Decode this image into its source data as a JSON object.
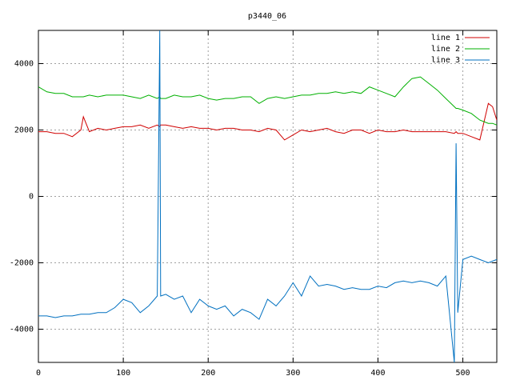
{
  "chart_data": {
    "type": "line",
    "title": "p3440_06",
    "x": [
      0,
      10,
      20,
      30,
      40,
      50,
      53,
      60,
      70,
      80,
      90,
      100,
      110,
      120,
      130,
      140,
      143,
      144,
      150,
      160,
      170,
      180,
      190,
      200,
      210,
      220,
      230,
      240,
      250,
      260,
      270,
      280,
      290,
      300,
      310,
      320,
      330,
      340,
      350,
      360,
      370,
      380,
      390,
      400,
      410,
      420,
      430,
      440,
      450,
      460,
      470,
      480,
      490,
      492,
      494,
      500,
      510,
      520,
      530,
      535,
      540
    ],
    "series": [
      {
        "name": "line 1",
        "color": "#d00000",
        "values": [
          1950,
          1950,
          1900,
          1900,
          1800,
          2000,
          2400,
          1950,
          2050,
          2000,
          2050,
          2100,
          2100,
          2150,
          2050,
          2150,
          2100,
          2150,
          2150,
          2100,
          2050,
          2100,
          2050,
          2050,
          2000,
          2050,
          2050,
          2000,
          2000,
          1950,
          2050,
          2000,
          1700,
          1850,
          2000,
          1950,
          2000,
          2050,
          1950,
          1900,
          2000,
          2000,
          1900,
          2000,
          1950,
          1950,
          2000,
          1950,
          1950,
          1950,
          1950,
          1950,
          1900,
          1950,
          1900,
          1900,
          1800,
          1700,
          2800,
          2700,
          2300
        ]
      },
      {
        "name": "line 2",
        "color": "#00b000",
        "values": [
          3300,
          3150,
          3100,
          3100,
          3000,
          3000,
          3000,
          3050,
          3000,
          3050,
          3050,
          3050,
          3000,
          2950,
          3050,
          2950,
          3000,
          2950,
          2950,
          3050,
          3000,
          3000,
          3050,
          2950,
          2900,
          2950,
          2950,
          3000,
          3000,
          2800,
          2950,
          3000,
          2950,
          3000,
          3050,
          3050,
          3100,
          3100,
          3150,
          3100,
          3150,
          3100,
          3300,
          3200,
          3100,
          3000,
          3300,
          3550,
          3600,
          3400,
          3200,
          2950,
          2700,
          2650,
          2650,
          2600,
          2500,
          2300,
          2200,
          2200,
          2150
        ]
      },
      {
        "name": "line 3",
        "color": "#0070c0",
        "values": [
          -3600,
          -3600,
          -3650,
          -3600,
          -3600,
          -3550,
          -3550,
          -3550,
          -3500,
          -3500,
          -3350,
          -3100,
          -3200,
          -3500,
          -3300,
          -3000,
          5000,
          -3000,
          -2950,
          -3100,
          -3000,
          -3500,
          -3100,
          -3300,
          -3400,
          -3300,
          -3600,
          -3400,
          -3500,
          -3700,
          -3100,
          -3300,
          -3000,
          -2600,
          -3000,
          -2400,
          -2700,
          -2650,
          -2700,
          -2800,
          -2750,
          -2800,
          -2800,
          -2700,
          -2750,
          -2600,
          -2550,
          -2600,
          -2550,
          -2600,
          -2700,
          -2400,
          -5000,
          1600,
          -3500,
          -1900,
          -1800,
          -1900,
          -2000,
          -1950,
          -1900
        ]
      }
    ],
    "xlim": [
      0,
      540
    ],
    "ylim": [
      -5000,
      5000
    ],
    "xticks": [
      0,
      100,
      200,
      300,
      400,
      500
    ],
    "yticks": [
      -4000,
      -2000,
      0,
      2000,
      4000
    ],
    "grid": true,
    "legend": "upper right"
  }
}
